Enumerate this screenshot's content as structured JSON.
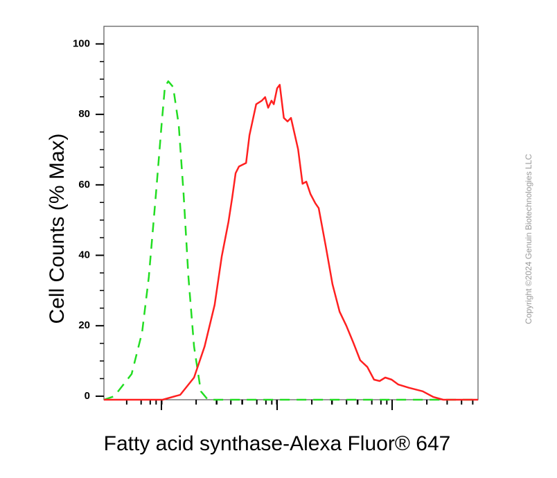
{
  "chart_data": {
    "type": "line",
    "ylabel": "Cell Counts (% Max)",
    "xlabel": "Fatty acid synthase-Alexa Fluor® 647",
    "watermark": "Copyright ©2024 Genuin Biotechnologies LLC",
    "xlim": [
      0,
      100
    ],
    "ylim": [
      -1,
      105
    ],
    "yticks": [
      0,
      20,
      40,
      60,
      80,
      100
    ],
    "series": [
      {
        "color": "#22dd22",
        "style": "dashed",
        "x": [
          0,
          2.8,
          7.4,
          10.2,
          12,
          13.9,
          15.4,
          16.3,
          17.2,
          18.5,
          20,
          21.3,
          22.6,
          24.1,
          25.9,
          27.8,
          100
        ],
        "values": [
          -1,
          0,
          6.3,
          18.1,
          33.8,
          57.4,
          77,
          87.8,
          89.4,
          87.8,
          77,
          57.4,
          33.8,
          14.1,
          1.4,
          -1,
          -1
        ]
      },
      {
        "color": "#ff2020",
        "style": "solid",
        "x": [
          0,
          15.7,
          20.4,
          24.1,
          26.9,
          29.6,
          31.5,
          33.3,
          34.3,
          35.2,
          36.1,
          38,
          38.9,
          40.7,
          42.2,
          43.1,
          43.9,
          44.8,
          45.4,
          46.3,
          47,
          48.1,
          49.1,
          50,
          51.9,
          53.1,
          54.1,
          55.2,
          56.5,
          57.4,
          59.3,
          61.1,
          63,
          64.8,
          66.7,
          68.5,
          70.4,
          72.2,
          73.7,
          75.2,
          76.9,
          78.7,
          81.5,
          85.2,
          88,
          90.7,
          100
        ],
        "values": [
          -1,
          -1,
          0.4,
          5.3,
          14.1,
          25.9,
          39.7,
          49.5,
          56.4,
          63.3,
          65.2,
          66.2,
          74.1,
          82.9,
          83.9,
          84.9,
          81.9,
          83.9,
          82.9,
          87.4,
          88.4,
          79,
          78,
          79,
          70.1,
          60.3,
          60.9,
          57.4,
          54.8,
          53.4,
          42.6,
          31.8,
          24,
          20,
          15.1,
          10.2,
          8.3,
          4.7,
          4.3,
          5.3,
          4.7,
          3.3,
          2.4,
          1.4,
          -0.2,
          -1,
          -1
        ]
      }
    ]
  }
}
